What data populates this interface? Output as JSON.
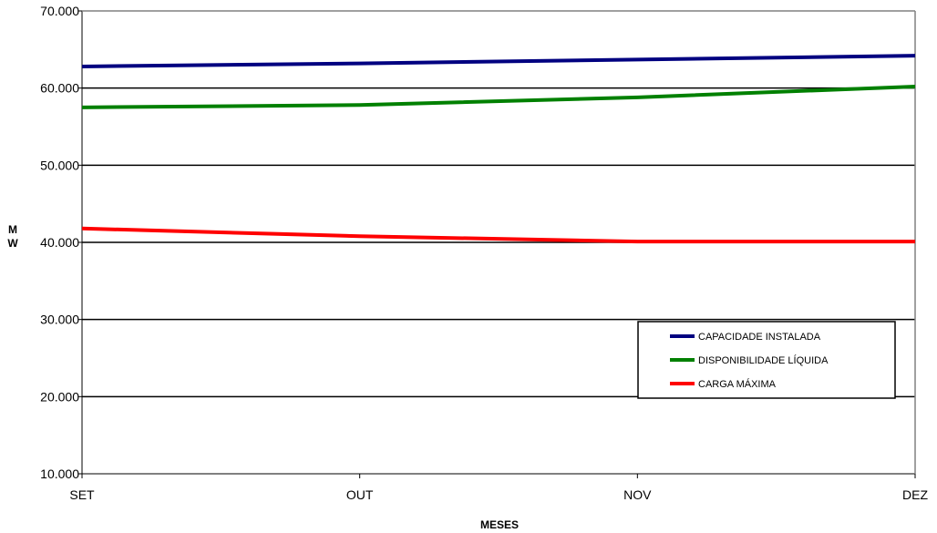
{
  "chart_data": {
    "type": "line",
    "categories": [
      "SET",
      "OUT",
      "NOV",
      "DEZ"
    ],
    "x_tick_labels": [
      "SET",
      "OUT",
      "NOV",
      "DEZ"
    ],
    "xlabel": "MESES",
    "ylabel_lines": [
      "M",
      "W"
    ],
    "ylim": [
      10000,
      70000
    ],
    "y_ticks": [
      10000,
      20000,
      30000,
      40000,
      50000,
      60000,
      70000
    ],
    "y_tick_labels": [
      "10.000",
      "20.000",
      "30.000",
      "40.000",
      "50.000",
      "60.000",
      "70.000"
    ],
    "grid": "horizontal",
    "legend_position": "bottom-right",
    "series": [
      {
        "name": "CAPACIDADE INSTALADA",
        "color": "#000080",
        "values": [
          62800,
          63200,
          63700,
          64200
        ]
      },
      {
        "name": "DISPONIBILIDADE LÍQUIDA",
        "color": "#008000",
        "values": [
          57500,
          57800,
          58800,
          60200
        ]
      },
      {
        "name": "CARGA MÁXIMA",
        "color": "#ff0000",
        "values": [
          41800,
          40800,
          40100,
          40100
        ]
      }
    ]
  }
}
